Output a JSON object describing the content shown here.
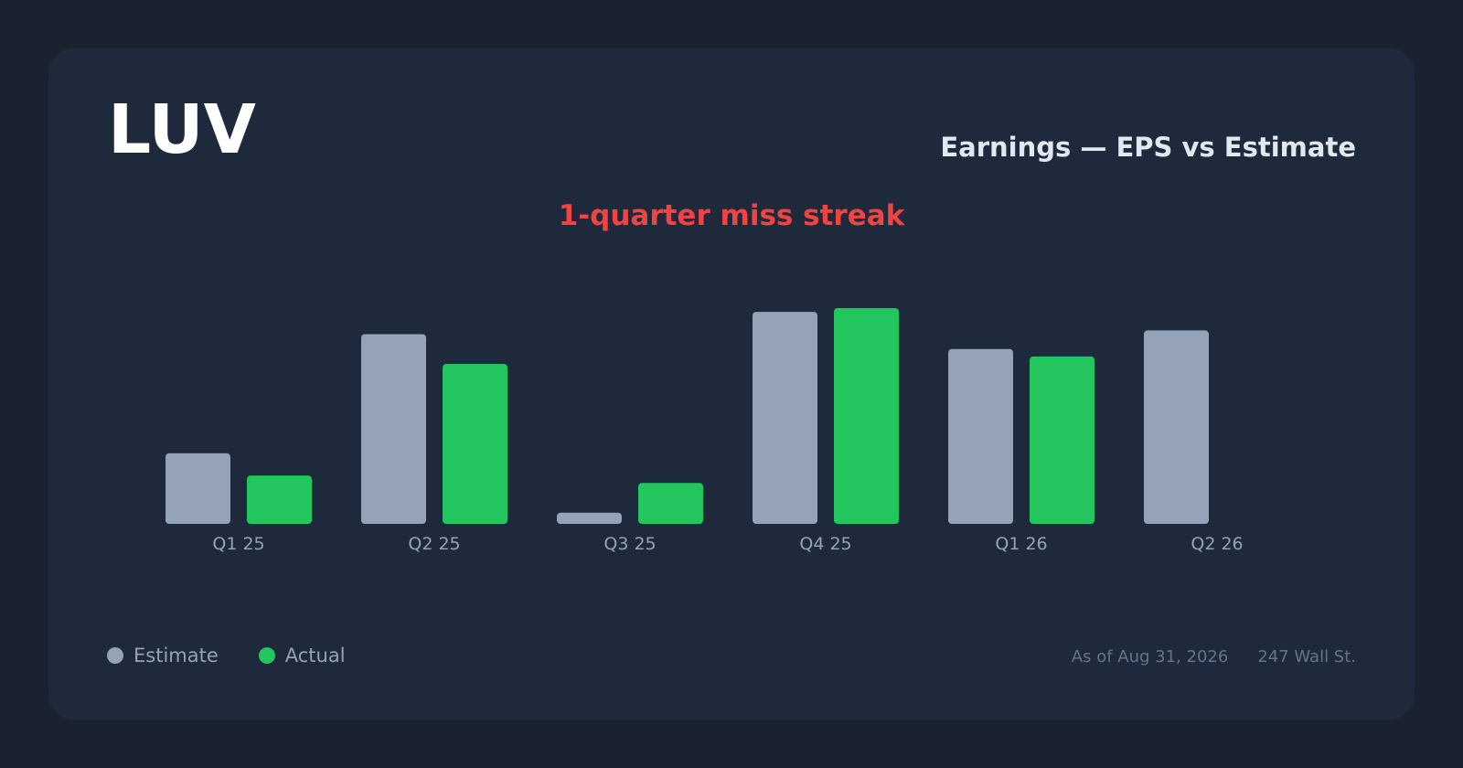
{
  "header": {
    "ticker": "LUV",
    "title": "Earnings — EPS vs Estimate"
  },
  "streak_label": "1-quarter miss streak",
  "legend": {
    "estimate_label": "Estimate",
    "actual_label": "Actual"
  },
  "footer": {
    "as_of": "As of Aug 31, 2026",
    "source": "247 Wall St."
  },
  "colors": {
    "estimate": "#94a3b8",
    "actual": "#22c55e",
    "streak": "#ef4444",
    "tick": "#94a3b8"
  },
  "chart_data": {
    "type": "bar",
    "categories": [
      "Q1 25",
      "Q2 25",
      "Q3 25",
      "Q4 25",
      "Q1 26",
      "Q2 26"
    ],
    "series": [
      {
        "name": "Estimate",
        "values": [
          0.19,
          0.51,
          0.03,
          0.57,
          0.47,
          0.52
        ]
      },
      {
        "name": "Actual",
        "values": [
          0.13,
          0.43,
          0.11,
          0.58,
          0.45,
          null
        ]
      }
    ],
    "ylim": [
      0,
      0.58
    ],
    "grid": false,
    "legend_position": "bottom-left"
  }
}
